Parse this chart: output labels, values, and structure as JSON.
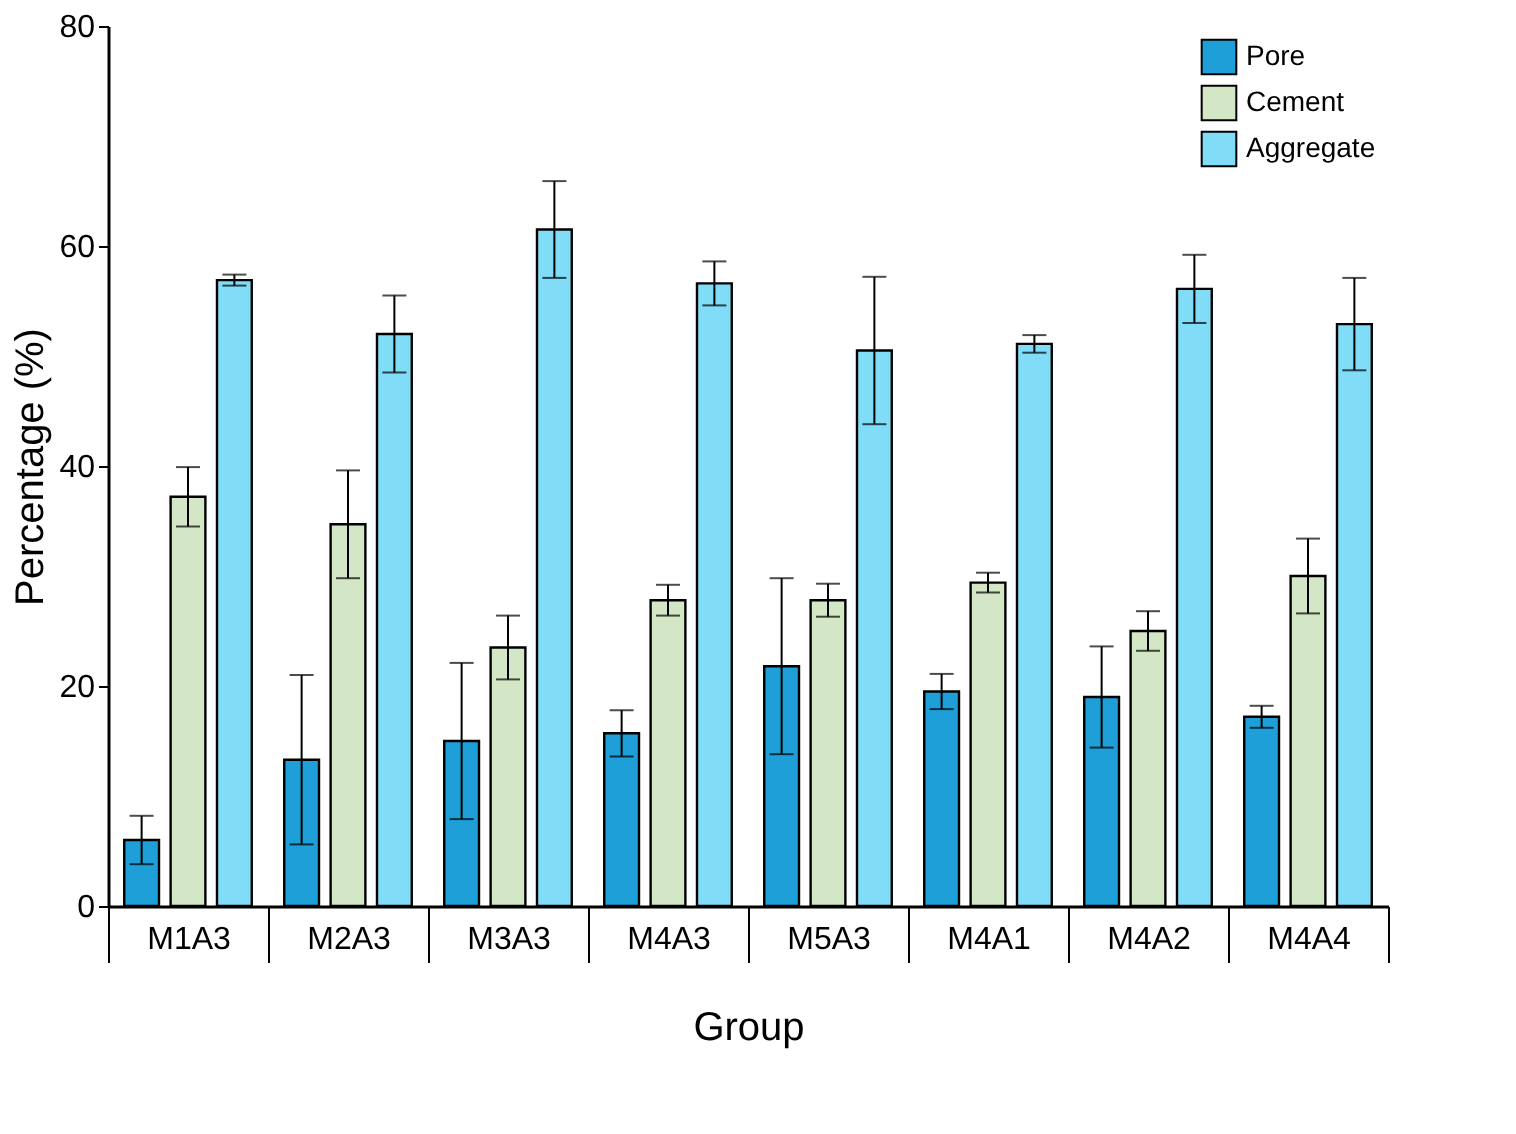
{
  "chart_data": {
    "type": "bar",
    "xlabel": "Group",
    "ylabel": "Percentage (%)",
    "categories": [
      "M1A3",
      "M2A3",
      "M3A3",
      "M4A3",
      "M5A3",
      "M4A1",
      "M4A2",
      "M4A4"
    ],
    "series": [
      {
        "name": "Pore",
        "color": "#1f9fd8",
        "values": [
          6.0,
          13.3,
          15.0,
          15.7,
          21.8,
          19.5,
          19.0,
          17.2
        ],
        "errors": [
          2.2,
          7.7,
          7.1,
          2.1,
          8.0,
          1.6,
          4.6,
          1.0
        ]
      },
      {
        "name": "Cement",
        "color": "#d3e6c5",
        "values": [
          37.2,
          34.7,
          23.5,
          27.8,
          27.8,
          29.4,
          25.0,
          30.0
        ],
        "errors": [
          2.7,
          4.9,
          2.9,
          1.4,
          1.5,
          0.9,
          1.8,
          3.4
        ]
      },
      {
        "name": "Aggregate",
        "color": "#80dcf7",
        "values": [
          56.9,
          52.0,
          61.5,
          56.6,
          50.5,
          51.1,
          56.1,
          52.9
        ],
        "errors": [
          0.5,
          3.5,
          4.4,
          2.0,
          6.7,
          0.8,
          3.1,
          4.2
        ]
      }
    ],
    "ylim": [
      0,
      80
    ],
    "yticks": [
      0,
      20,
      40,
      60,
      80
    ],
    "grid": false,
    "legend": "top right"
  }
}
